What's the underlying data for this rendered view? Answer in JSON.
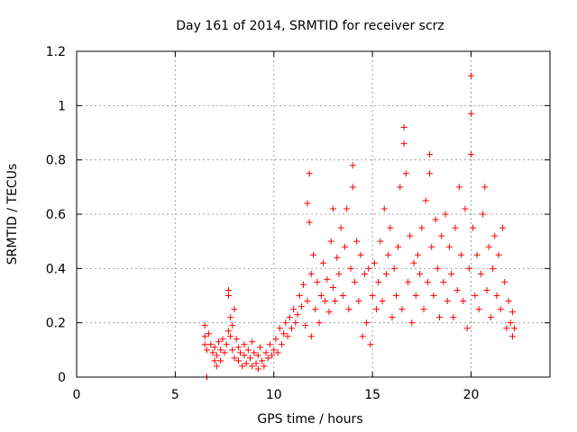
{
  "chart_data": {
    "type": "scatter",
    "title": "Day 161 of 2014, SRMTID for receiver scrz",
    "xlabel": "GPS time / hours",
    "ylabel": "SRMTID / TECUs",
    "xlim": [
      0,
      24
    ],
    "ylim": [
      0,
      1.2
    ],
    "xticks": [
      0,
      5,
      10,
      15,
      20
    ],
    "xtick_labels": [
      "0",
      "5",
      "10",
      "15",
      "20"
    ],
    "yticks": [
      0,
      0.2,
      0.4,
      0.6,
      0.8,
      1,
      1.2
    ],
    "ytick_labels": [
      "0",
      "0.2",
      "0.4",
      "0.6",
      "0.8",
      "1",
      "1.2"
    ],
    "grid": true,
    "marker": "plus",
    "color": "#ff0000",
    "series": [
      {
        "name": "SRMTID",
        "points": [
          [
            6.6,
            0.0
          ],
          [
            6.6,
            0.0
          ],
          [
            6.5,
            0.19
          ],
          [
            6.5,
            0.15
          ],
          [
            6.5,
            0.12
          ],
          [
            6.6,
            0.1
          ],
          [
            6.7,
            0.16
          ],
          [
            6.8,
            0.12
          ],
          [
            6.9,
            0.09
          ],
          [
            7.0,
            0.06
          ],
          [
            7.0,
            0.11
          ],
          [
            7.1,
            0.04
          ],
          [
            7.1,
            0.08
          ],
          [
            7.2,
            0.13
          ],
          [
            7.3,
            0.1
          ],
          [
            7.3,
            0.06
          ],
          [
            7.4,
            0.14
          ],
          [
            7.5,
            0.09
          ],
          [
            7.6,
            0.12
          ],
          [
            7.7,
            0.17
          ],
          [
            7.7,
            0.32
          ],
          [
            7.7,
            0.3
          ],
          [
            7.8,
            0.22
          ],
          [
            7.8,
            0.15
          ],
          [
            7.9,
            0.19
          ],
          [
            7.9,
            0.1
          ],
          [
            8.0,
            0.25
          ],
          [
            8.0,
            0.07
          ],
          [
            8.1,
            0.14
          ],
          [
            8.2,
            0.11
          ],
          [
            8.2,
            0.06
          ],
          [
            8.3,
            0.09
          ],
          [
            8.4,
            0.04
          ],
          [
            8.5,
            0.12
          ],
          [
            8.5,
            0.08
          ],
          [
            8.6,
            0.05
          ],
          [
            8.7,
            0.1
          ],
          [
            8.8,
            0.07
          ],
          [
            8.9,
            0.13
          ],
          [
            8.9,
            0.04
          ],
          [
            9.0,
            0.09
          ],
          [
            9.1,
            0.05
          ],
          [
            9.2,
            0.03
          ],
          [
            9.2,
            0.08
          ],
          [
            9.3,
            0.11
          ],
          [
            9.4,
            0.06
          ],
          [
            9.5,
            0.04
          ],
          [
            9.6,
            0.09
          ],
          [
            9.7,
            0.07
          ],
          [
            9.8,
            0.12
          ],
          [
            9.9,
            0.08
          ],
          [
            10.0,
            0.1
          ],
          [
            10.1,
            0.14
          ],
          [
            10.2,
            0.09
          ],
          [
            10.3,
            0.18
          ],
          [
            10.4,
            0.12
          ],
          [
            10.5,
            0.16
          ],
          [
            10.6,
            0.2
          ],
          [
            10.7,
            0.15
          ],
          [
            10.8,
            0.22
          ],
          [
            10.9,
            0.18
          ],
          [
            11.0,
            0.25
          ],
          [
            11.1,
            0.2
          ],
          [
            11.2,
            0.23
          ],
          [
            11.3,
            0.3
          ],
          [
            11.4,
            0.26
          ],
          [
            11.5,
            0.34
          ],
          [
            11.6,
            0.19
          ],
          [
            11.7,
            0.28
          ],
          [
            11.7,
            0.64
          ],
          [
            11.8,
            0.75
          ],
          [
            11.8,
            0.57
          ],
          [
            11.9,
            0.38
          ],
          [
            11.9,
            0.15
          ],
          [
            12.0,
            0.45
          ],
          [
            12.1,
            0.25
          ],
          [
            12.2,
            0.35
          ],
          [
            12.3,
            0.2
          ],
          [
            12.4,
            0.3
          ],
          [
            12.5,
            0.42
          ],
          [
            12.6,
            0.28
          ],
          [
            12.7,
            0.36
          ],
          [
            12.8,
            0.24
          ],
          [
            12.9,
            0.5
          ],
          [
            13.0,
            0.33
          ],
          [
            13.0,
            0.62
          ],
          [
            13.1,
            0.28
          ],
          [
            13.2,
            0.44
          ],
          [
            13.3,
            0.38
          ],
          [
            13.4,
            0.55
          ],
          [
            13.5,
            0.3
          ],
          [
            13.6,
            0.48
          ],
          [
            13.7,
            0.62
          ],
          [
            13.8,
            0.25
          ],
          [
            13.9,
            0.4
          ],
          [
            14.0,
            0.78
          ],
          [
            14.0,
            0.7
          ],
          [
            14.1,
            0.35
          ],
          [
            14.2,
            0.5
          ],
          [
            14.3,
            0.28
          ],
          [
            14.4,
            0.45
          ],
          [
            14.5,
            0.15
          ],
          [
            14.6,
            0.38
          ],
          [
            14.7,
            0.2
          ],
          [
            14.8,
            0.4
          ],
          [
            14.9,
            0.12
          ],
          [
            15.0,
            0.3
          ],
          [
            15.1,
            0.42
          ],
          [
            15.2,
            0.25
          ],
          [
            15.3,
            0.35
          ],
          [
            15.4,
            0.5
          ],
          [
            15.5,
            0.28
          ],
          [
            15.6,
            0.62
          ],
          [
            15.7,
            0.38
          ],
          [
            15.8,
            0.45
          ],
          [
            15.9,
            0.55
          ],
          [
            16.0,
            0.22
          ],
          [
            16.1,
            0.4
          ],
          [
            16.2,
            0.3
          ],
          [
            16.3,
            0.48
          ],
          [
            16.4,
            0.7
          ],
          [
            16.5,
            0.25
          ],
          [
            16.6,
            0.92
          ],
          [
            16.6,
            0.86
          ],
          [
            16.7,
            0.75
          ],
          [
            16.8,
            0.35
          ],
          [
            16.9,
            0.52
          ],
          [
            17.0,
            0.2
          ],
          [
            17.1,
            0.42
          ],
          [
            17.2,
            0.3
          ],
          [
            17.3,
            0.45
          ],
          [
            17.4,
            0.38
          ],
          [
            17.5,
            0.55
          ],
          [
            17.6,
            0.25
          ],
          [
            17.7,
            0.65
          ],
          [
            17.8,
            0.35
          ],
          [
            17.9,
            0.82
          ],
          [
            17.9,
            0.75
          ],
          [
            18.0,
            0.48
          ],
          [
            18.1,
            0.3
          ],
          [
            18.2,
            0.58
          ],
          [
            18.3,
            0.4
          ],
          [
            18.4,
            0.22
          ],
          [
            18.5,
            0.52
          ],
          [
            18.6,
            0.35
          ],
          [
            18.7,
            0.6
          ],
          [
            18.8,
            0.28
          ],
          [
            18.9,
            0.48
          ],
          [
            19.0,
            0.38
          ],
          [
            19.1,
            0.22
          ],
          [
            19.2,
            0.55
          ],
          [
            19.3,
            0.32
          ],
          [
            19.4,
            0.7
          ],
          [
            19.5,
            0.45
          ],
          [
            19.6,
            0.28
          ],
          [
            19.7,
            0.62
          ],
          [
            19.8,
            0.18
          ],
          [
            19.9,
            0.4
          ],
          [
            20.0,
            1.11
          ],
          [
            20.0,
            0.97
          ],
          [
            20.0,
            0.82
          ],
          [
            20.1,
            0.55
          ],
          [
            20.2,
            0.3
          ],
          [
            20.3,
            0.45
          ],
          [
            20.4,
            0.25
          ],
          [
            20.5,
            0.38
          ],
          [
            20.6,
            0.6
          ],
          [
            20.7,
            0.7
          ],
          [
            20.8,
            0.32
          ],
          [
            20.9,
            0.48
          ],
          [
            21.0,
            0.22
          ],
          [
            21.1,
            0.4
          ],
          [
            21.2,
            0.52
          ],
          [
            21.3,
            0.3
          ],
          [
            21.4,
            0.45
          ],
          [
            21.5,
            0.25
          ],
          [
            21.6,
            0.55
          ],
          [
            21.7,
            0.35
          ],
          [
            21.8,
            0.18
          ],
          [
            21.9,
            0.28
          ],
          [
            22.0,
            0.2
          ],
          [
            22.1,
            0.15
          ],
          [
            22.1,
            0.24
          ],
          [
            22.2,
            0.18
          ]
        ]
      }
    ]
  }
}
